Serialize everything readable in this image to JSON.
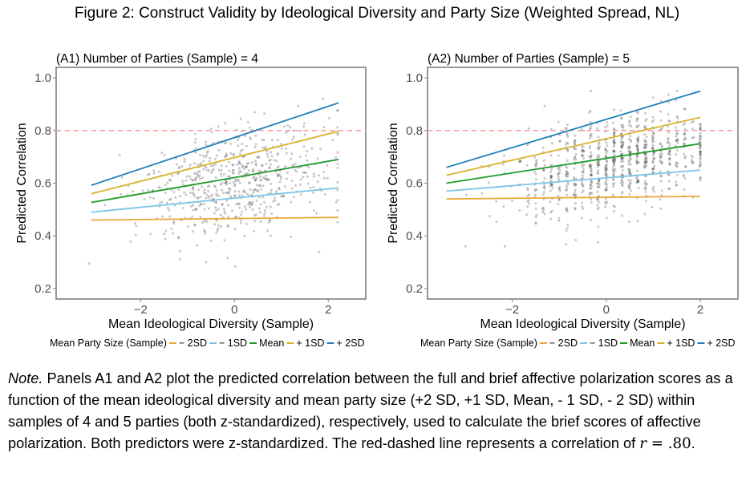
{
  "figure_title": "Figure 2: Construct Validity by Ideological Diversity and Party Size (Weighted Spread, NL)",
  "note": {
    "lead": "Note.",
    "body": " Panels A1 and A2 plot the predicted correlation between the full and brief affective polarization scores as a function of the mean ideological diversity and mean party size (+2 SD, +1 SD, Mean, - 1 SD, - 2 SD) within samples of 4 and 5 parties (both z-standardized), respectively, used to calculate the brief scores of affective polarization. Both predictors were z-standardized. The red-dashed line represents a correlation of ",
    "math_var": "r",
    "math_eq": " = .80",
    "end": "."
  },
  "chart_data": [
    {
      "type": "line",
      "title": "(A1) Number of Parties (Sample) = 4",
      "xlabel": "Mean Ideological Diversity (Sample)",
      "ylabel": "Predicted Correlation",
      "xlim": [
        -3.8,
        2.8
      ],
      "ylim": [
        0.16,
        1.04
      ],
      "xticks": [
        -2,
        0,
        2
      ],
      "xtick_labels": [
        "−2",
        "0",
        "2"
      ],
      "yticks": [
        0.2,
        0.4,
        0.6,
        0.8,
        1.0
      ],
      "ytick_labels": [
        "0.2",
        "0.4",
        "0.6",
        "0.8",
        "1.0"
      ],
      "grid": false,
      "reference_line": {
        "y": 0.8,
        "style": "dashed",
        "color": "#f8a0a0"
      },
      "legend_title": "Mean Party Size (Sample)",
      "legend_position": "bottom",
      "series": [
        {
          "name": "− 2SD",
          "color": "#e8a93a",
          "x": [
            -3.05,
            2.22
          ],
          "y": [
            0.46,
            0.47
          ]
        },
        {
          "name": "− 1SD",
          "color": "#7cc3ea",
          "x": [
            -3.05,
            2.22
          ],
          "y": [
            0.49,
            0.582
          ]
        },
        {
          "name": "Mean",
          "color": "#1e9a28",
          "x": [
            -3.05,
            2.22
          ],
          "y": [
            0.527,
            0.69
          ]
        },
        {
          "name": "+ 1SD",
          "color": "#d9b22c",
          "x": [
            -3.05,
            2.22
          ],
          "y": [
            0.56,
            0.797
          ]
        },
        {
          "name": "+ 2SD",
          "color": "#1f7fbd",
          "x": [
            -3.05,
            2.22
          ],
          "y": [
            0.592,
            0.905
          ]
        }
      ],
      "scatter": {
        "description": "grey semi-transparent points of predicted correlations",
        "x_range": [
          -3.1,
          2.2
        ],
        "y_range": [
          0.24,
          0.92
        ],
        "center": [
          0.0,
          0.6
        ]
      }
    },
    {
      "type": "line",
      "title": "(A2) Number of Parties (Sample) = 5",
      "xlabel": "Mean Ideological Diversity (Sample)",
      "ylabel": "Predicted Correlation",
      "xlim": [
        -3.8,
        2.8
      ],
      "ylim": [
        0.16,
        1.04
      ],
      "xticks": [
        -2,
        0,
        2
      ],
      "xtick_labels": [
        "−2",
        "0",
        "2"
      ],
      "yticks": [
        0.2,
        0.4,
        0.6,
        0.8,
        1.0
      ],
      "ytick_labels": [
        "0.2",
        "0.4",
        "0.6",
        "0.8",
        "1.0"
      ],
      "grid": false,
      "reference_line": {
        "y": 0.8,
        "style": "dashed",
        "color": "#f8a0a0"
      },
      "legend_title": "Mean Party Size (Sample)",
      "legend_position": "bottom",
      "series": [
        {
          "name": "− 2SD",
          "color": "#e8a93a",
          "x": [
            -3.4,
            2.0
          ],
          "y": [
            0.54,
            0.55
          ]
        },
        {
          "name": "− 1SD",
          "color": "#7cc3ea",
          "x": [
            -3.4,
            2.0
          ],
          "y": [
            0.57,
            0.65
          ]
        },
        {
          "name": "Mean",
          "color": "#1e9a28",
          "x": [
            -3.4,
            2.0
          ],
          "y": [
            0.6,
            0.75
          ]
        },
        {
          "name": "+ 1SD",
          "color": "#d9b22c",
          "x": [
            -3.4,
            2.0
          ],
          "y": [
            0.63,
            0.85
          ]
        },
        {
          "name": "+ 2SD",
          "color": "#1f7fbd",
          "x": [
            -3.4,
            2.0
          ],
          "y": [
            0.66,
            0.95
          ]
        }
      ],
      "scatter": {
        "description": "grey semi-transparent points of predicted correlations",
        "x_range": [
          -3.4,
          2.0
        ],
        "y_range": [
          0.36,
          0.95
        ],
        "center": [
          0.2,
          0.68
        ]
      }
    }
  ]
}
